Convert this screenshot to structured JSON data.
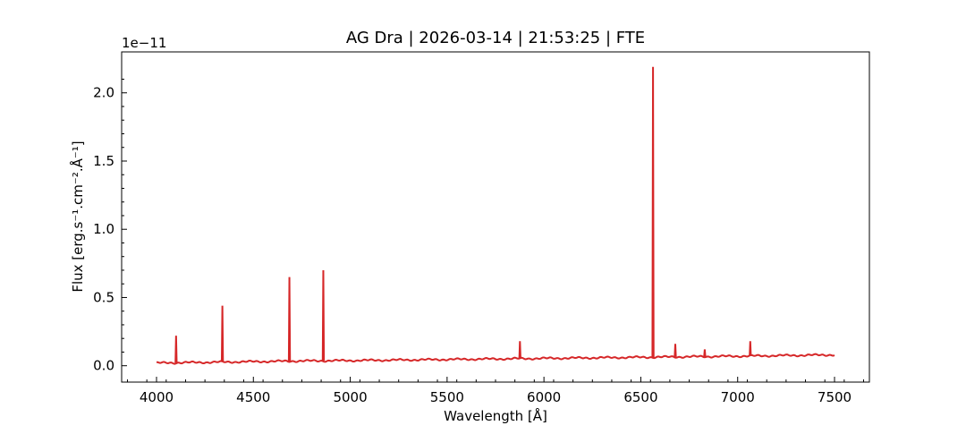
{
  "chart_data": {
    "type": "line",
    "title": "AG Dra | 2026-03-14 | 21:53:25 | FTE",
    "xlabel": "Wavelength [Å]",
    "ylabel": "Flux [erg.s⁻¹.cm⁻².Å⁻¹]",
    "y_offset_text": "1e−11",
    "y_scale": 1e-11,
    "xlim": [
      3820,
      7680
    ],
    "ylim": [
      -1.2e-12,
      2.3e-11
    ],
    "x_ticks": [
      4000,
      4500,
      5000,
      5500,
      6000,
      6500,
      7000,
      7500
    ],
    "x_tick_labels": [
      "4000",
      "4500",
      "5000",
      "5500",
      "6000",
      "6500",
      "7000",
      "7500"
    ],
    "y_ticks": [
      0.0,
      5e-12,
      1e-11,
      1.5e-11,
      2e-11
    ],
    "y_tick_labels": [
      "0.0",
      "0.5",
      "1.0",
      "1.5",
      "2.0"
    ],
    "grid": false,
    "series_color": "#d62728",
    "series": [
      {
        "x": [
          4000,
          4250,
          4500,
          4750,
          5000,
          5250,
          5500,
          5750,
          6000,
          6250,
          6500,
          6750,
          7000,
          7250,
          7500
        ],
        "y": [
          2e-13,
          2.5e-13,
          3e-13,
          3.5e-13,
          3.8e-13,
          4.2e-13,
          4.6e-13,
          5e-13,
          5.4e-13,
          5.8e-13,
          6.2e-13,
          6.6e-13,
          7e-13,
          7.5e-13,
          8e-13
        ]
      }
    ],
    "emission_lines": [
      {
        "x": 4101,
        "peak": 2.2e-12
      },
      {
        "x": 4340,
        "peak": 4.4e-12
      },
      {
        "x": 4686,
        "peak": 6.5e-12
      },
      {
        "x": 4861,
        "peak": 7e-12
      },
      {
        "x": 5876,
        "peak": 1.8e-12
      },
      {
        "x": 6563,
        "peak": 2.19e-11
      },
      {
        "x": 6678,
        "peak": 1.6e-12
      },
      {
        "x": 6830,
        "peak": 1.2e-12
      },
      {
        "x": 7065,
        "peak": 1.8e-12
      }
    ]
  }
}
